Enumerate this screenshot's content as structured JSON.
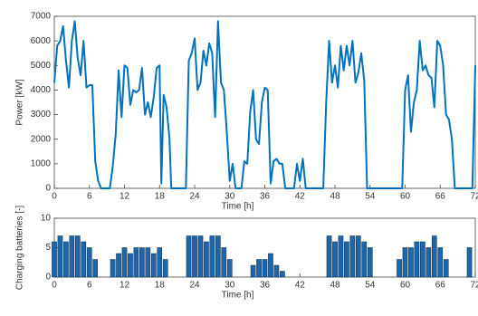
{
  "chart_data": [
    {
      "type": "line",
      "xlabel": "Time [h]",
      "ylabel": "Power [kW]",
      "xlim": [
        0,
        72
      ],
      "xticks": [
        0,
        6,
        12,
        18,
        24,
        30,
        36,
        42,
        48,
        54,
        60,
        66,
        72
      ],
      "ylim": [
        0,
        7000
      ],
      "yticks": [
        0,
        1000,
        2000,
        3000,
        4000,
        5000,
        6000,
        7000
      ],
      "grid": false,
      "series": [
        {
          "color": "#0072bd",
          "x": [
            0,
            0.5,
            1,
            1.5,
            2,
            2.5,
            3,
            3.5,
            4,
            4.5,
            5,
            5.5,
            6,
            6.5,
            7,
            7.5,
            8,
            9.5,
            10,
            10.5,
            11,
            11.5,
            12,
            12.5,
            13,
            13.5,
            14,
            14.5,
            15,
            15.5,
            16,
            16.5,
            17,
            17.5,
            18,
            18.3,
            18.7,
            19.2,
            19.7,
            20,
            22.5,
            23,
            23.5,
            24,
            24.5,
            25,
            25.5,
            26,
            26.5,
            27,
            27.5,
            28,
            28.5,
            29,
            29.5,
            30,
            30.5,
            31,
            32,
            32.5,
            33,
            33.5,
            34,
            34.5,
            35,
            35.5,
            36,
            36.5,
            37,
            37.5,
            38,
            38.5,
            39,
            39.5,
            41,
            41.5,
            42,
            42.5,
            43,
            46,
            46.5,
            47,
            47.5,
            48,
            48.5,
            49,
            49.5,
            50,
            50.5,
            51,
            51.5,
            52,
            52.5,
            53,
            53.5,
            59.5,
            60,
            60.5,
            61,
            61.5,
            62,
            62.5,
            63,
            63.5,
            64,
            64.5,
            65,
            65.5,
            66,
            66.5,
            67,
            67.5,
            68,
            68.5,
            71.5,
            72
          ],
          "values": [
            4300,
            5800,
            6000,
            6600,
            5200,
            4100,
            6000,
            6800,
            5300,
            4600,
            6000,
            4100,
            4200,
            4200,
            1100,
            300,
            0,
            0,
            900,
            2200,
            4800,
            2900,
            5000,
            4900,
            3400,
            4000,
            3900,
            4000,
            4900,
            3000,
            3500,
            2900,
            3700,
            4900,
            5000,
            200,
            3800,
            3300,
            2000,
            0,
            0,
            5200,
            5500,
            6100,
            4000,
            4300,
            5600,
            5000,
            5900,
            5500,
            2900,
            6800,
            4300,
            4000,
            2300,
            300,
            1000,
            0,
            0,
            1100,
            1000,
            3100,
            4000,
            2000,
            1800,
            3500,
            4100,
            4000,
            200,
            1100,
            1200,
            1000,
            1000,
            0,
            0,
            1000,
            300,
            1200,
            0,
            0,
            3500,
            6000,
            4300,
            5000,
            4100,
            5800,
            4800,
            5800,
            5000,
            6000,
            4300,
            4700,
            5500,
            4400,
            0,
            0,
            4000,
            4600,
            2300,
            3500,
            4000,
            6000,
            4800,
            5000,
            4600,
            4500,
            3300,
            6000,
            5800,
            5000,
            3000,
            2800,
            2000,
            0,
            0,
            5000
          ]
        }
      ]
    },
    {
      "type": "bar",
      "xlabel": "Time [h]",
      "ylabel": "Charging batteries [-]",
      "xlim": [
        0,
        72
      ],
      "xticks": [
        0,
        6,
        12,
        18,
        24,
        30,
        36,
        42,
        48,
        54,
        60,
        66,
        72
      ],
      "ylim": [
        0,
        10
      ],
      "yticks": [
        0,
        5,
        10
      ],
      "grid": false,
      "series": [
        {
          "color": "#1f66a8",
          "x": [
            0,
            1,
            2,
            3,
            4,
            5,
            6,
            7,
            8,
            9,
            10,
            11,
            12,
            13,
            14,
            15,
            16,
            17,
            18,
            19,
            20,
            21,
            22,
            23,
            24,
            25,
            26,
            27,
            28,
            29,
            30,
            31,
            32,
            33,
            34,
            35,
            36,
            37,
            38,
            39,
            40,
            41,
            42,
            43,
            44,
            45,
            46,
            47,
            48,
            49,
            50,
            51,
            52,
            53,
            54,
            55,
            56,
            57,
            58,
            59,
            60,
            61,
            62,
            63,
            64,
            65,
            66,
            67,
            68,
            69,
            70,
            71
          ],
          "values": [
            6,
            7,
            6,
            7,
            7,
            6,
            5,
            3,
            0,
            0,
            3,
            4,
            5,
            4,
            5,
            5,
            5,
            4,
            5,
            3,
            0,
            0,
            0,
            7,
            7,
            7,
            6,
            7,
            7,
            5,
            3,
            0,
            0,
            0,
            2,
            3,
            3,
            4,
            2,
            1,
            0,
            0,
            0,
            0,
            0,
            0,
            0,
            7,
            6,
            7,
            6,
            7,
            7,
            6,
            5,
            0,
            0,
            0,
            0,
            3,
            5,
            5,
            6,
            6,
            5,
            7,
            5,
            3,
            0,
            0,
            0,
            5
          ]
        }
      ]
    }
  ]
}
